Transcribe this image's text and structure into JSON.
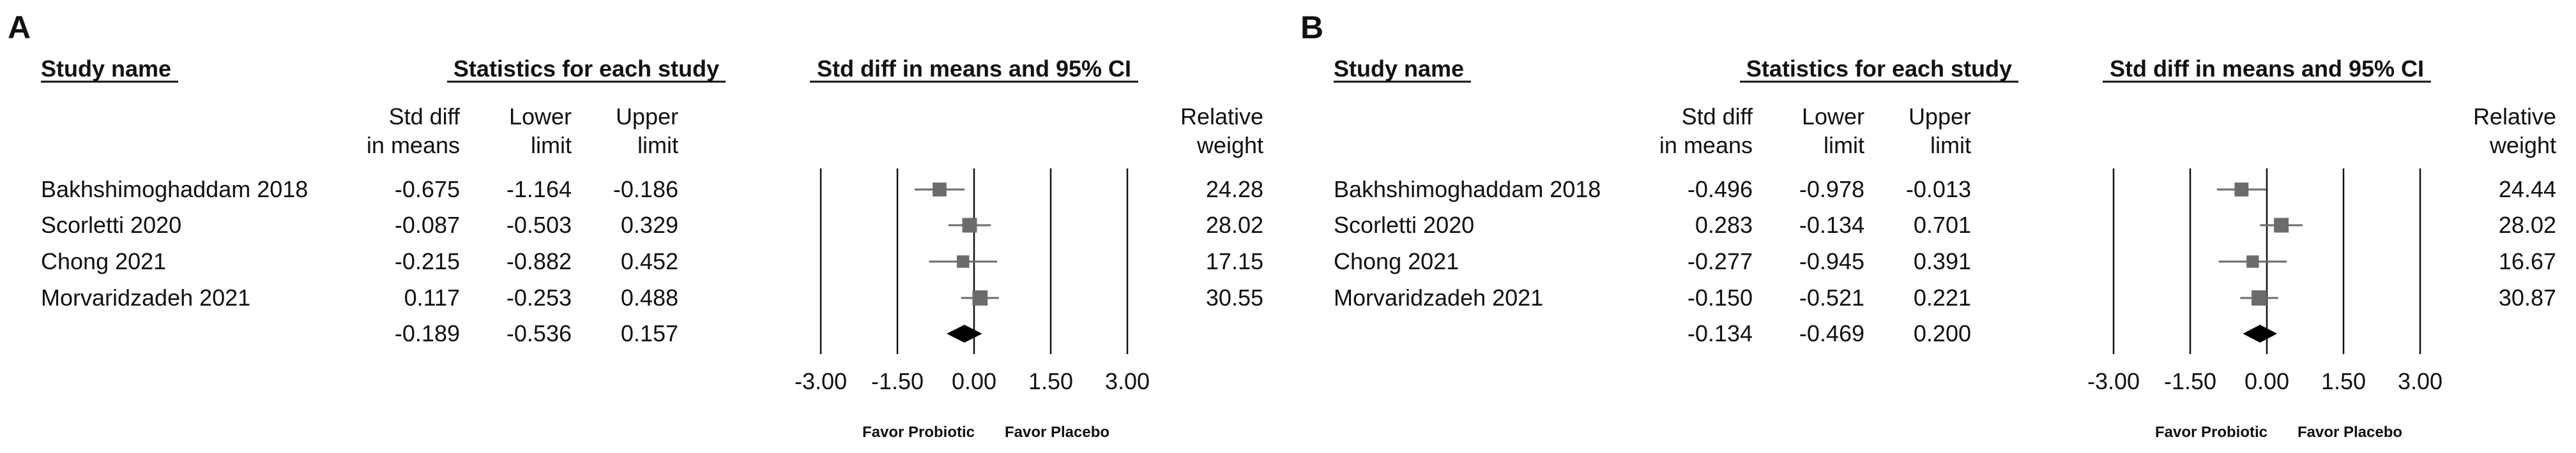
{
  "headers": {
    "study_name": "Study name",
    "stats": "Statistics for each study",
    "ci": "Std diff in means and 95% CI",
    "std_diff_1": "Std diff",
    "std_diff_2": "in means",
    "lower_1": "Lower",
    "lower_2": "limit",
    "upper_1": "Upper",
    "upper_2": "limit",
    "weight_1": "Relative",
    "weight_2": "weight"
  },
  "axis": {
    "xlim": [
      -3.0,
      3.0
    ],
    "ticks": [
      -3.0,
      -1.5,
      0.0,
      1.5,
      3.0
    ],
    "tick_labels": [
      "-3.00",
      "-1.50",
      "0.00",
      "1.50",
      "3.00"
    ],
    "vertical_lines": [
      -3.0,
      -1.5,
      0.0,
      1.5,
      3.0
    ],
    "favor_left": "Favor Probiotic",
    "favor_right": "Favor Placebo"
  },
  "colors": {
    "marker": "#6b6b6b",
    "summary": "#000000",
    "text": "#111111"
  },
  "chart_data": [
    {
      "type": "forest",
      "panel_label": "A",
      "studies": [
        {
          "name": "Bakhshimoghaddam 2018",
          "smd": -0.675,
          "lower": -1.164,
          "upper": -0.186,
          "weight": 24.28,
          "smd_text": "-0.675",
          "lower_text": "-1.164",
          "upper_text": "-0.186",
          "weight_text": "24.28"
        },
        {
          "name": "Scorletti 2020",
          "smd": -0.087,
          "lower": -0.503,
          "upper": 0.329,
          "weight": 28.02,
          "smd_text": "-0.087",
          "lower_text": "-0.503",
          "upper_text": "0.329",
          "weight_text": "28.02"
        },
        {
          "name": "Chong 2021",
          "smd": -0.215,
          "lower": -0.882,
          "upper": 0.452,
          "weight": 17.15,
          "smd_text": "-0.215",
          "lower_text": "-0.882",
          "upper_text": "0.452",
          "weight_text": "17.15"
        },
        {
          "name": "Morvaridzadeh 2021",
          "smd": 0.117,
          "lower": -0.253,
          "upper": 0.488,
          "weight": 30.55,
          "smd_text": "0.117",
          "lower_text": "-0.253",
          "upper_text": "0.488",
          "weight_text": "30.55"
        }
      ],
      "summary": {
        "smd": -0.189,
        "lower": -0.536,
        "upper": 0.157,
        "smd_text": "-0.189",
        "lower_text": "-0.536",
        "upper_text": "0.157"
      }
    },
    {
      "type": "forest",
      "panel_label": "B",
      "studies": [
        {
          "name": "Bakhshimoghaddam 2018",
          "smd": -0.496,
          "lower": -0.978,
          "upper": -0.013,
          "weight": 24.44,
          "smd_text": "-0.496",
          "lower_text": "-0.978",
          "upper_text": "-0.013",
          "weight_text": "24.44"
        },
        {
          "name": "Scorletti 2020",
          "smd": 0.283,
          "lower": -0.134,
          "upper": 0.701,
          "weight": 28.02,
          "smd_text": "0.283",
          "lower_text": "-0.134",
          "upper_text": "0.701",
          "weight_text": "28.02"
        },
        {
          "name": "Chong 2021",
          "smd": -0.277,
          "lower": -0.945,
          "upper": 0.391,
          "weight": 16.67,
          "smd_text": "-0.277",
          "lower_text": "-0.945",
          "upper_text": "0.391",
          "weight_text": "16.67"
        },
        {
          "name": "Morvaridzadeh 2021",
          "smd": -0.15,
          "lower": -0.521,
          "upper": 0.221,
          "weight": 30.87,
          "smd_text": "-0.150",
          "lower_text": "-0.521",
          "upper_text": "0.221",
          "weight_text": "30.87"
        }
      ],
      "summary": {
        "smd": -0.134,
        "lower": -0.469,
        "upper": 0.2,
        "smd_text": "-0.134",
        "lower_text": "-0.469",
        "upper_text": "0.200"
      }
    }
  ]
}
